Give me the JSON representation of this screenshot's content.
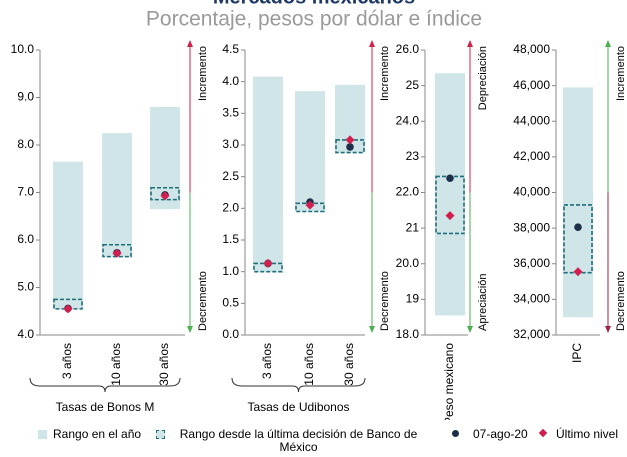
{
  "title": "Mercados mexicanos",
  "subtitle": "Porcentaje, pesos por dólar e índice",
  "legend": [
    {
      "name": "Rango en el año",
      "color": "#cfe5e8"
    },
    {
      "name": "Rango desde la última decisión de Banco de México",
      "color": "#1f6f7a"
    },
    {
      "name": "07-ago-20",
      "color": "#1c2e4a"
    },
    {
      "name": "Último nivel",
      "color": "#d21f4f"
    }
  ],
  "chart_data": [
    {
      "type": "range",
      "group_label": "Tasas de Bonos M",
      "categories": [
        "3 años",
        "10 años",
        "30 años"
      ],
      "range": {
        "low": [
          4.55,
          5.65,
          6.65
        ],
        "high": [
          7.65,
          8.25,
          8.8
        ]
      },
      "decision_range": {
        "low": [
          4.55,
          5.65,
          6.85
        ],
        "high": [
          4.75,
          5.9,
          7.1
        ]
      },
      "ago": [
        4.56,
        5.73,
        6.95
      ],
      "last": [
        4.55,
        5.72,
        6.93
      ],
      "ylim": [
        4,
        10
      ],
      "yticks": [
        {
          "value": 4,
          "label": "4.0"
        },
        {
          "value": 5,
          "label": "5.0"
        },
        {
          "value": 6,
          "label": "6.0"
        },
        {
          "value": 7,
          "label": "7.0"
        },
        {
          "value": 8,
          "label": "8.0"
        },
        {
          "value": 9,
          "label": "9.0"
        },
        {
          "value": 10,
          "label": "10.0"
        }
      ],
      "arrow_labels": {
        "top": "Incremento",
        "bottom": "Decremento"
      },
      "arrow_colors": [
        "#d0234a",
        "#4caf50"
      ]
    },
    {
      "type": "range",
      "group_label": "Tasas de Udibonos",
      "categories": [
        "3 años",
        "10 años",
        "30 años"
      ],
      "range": {
        "low": [
          1.05,
          1.95,
          2.88
        ],
        "high": [
          4.08,
          3.85,
          3.95
        ]
      },
      "decision_range": {
        "low": [
          1.0,
          1.95,
          2.88
        ],
        "high": [
          1.13,
          2.08,
          3.08
        ]
      },
      "ago": [
        1.13,
        2.1,
        2.97
      ],
      "last": [
        1.13,
        2.05,
        3.08
      ],
      "ylim": [
        0,
        4.5
      ],
      "yticks": [
        {
          "value": 0,
          "label": "0.0"
        },
        0.5,
        {
          "value": 1,
          "label": "1.0"
        },
        1.5,
        {
          "value": 2,
          "label": "2.0"
        },
        2.5,
        {
          "value": 3,
          "label": "3.0"
        },
        3.5,
        {
          "value": 4,
          "label": "4.0"
        },
        4.5
      ],
      "arrow_labels": {
        "top": "Incremento",
        "bottom": "Decremento"
      },
      "arrow_colors": [
        "#d0234a",
        "#4caf50"
      ]
    },
    {
      "type": "range",
      "categories": [
        "Peso mexicano"
      ],
      "range": {
        "low": [
          18.55
        ],
        "high": [
          25.35
        ]
      },
      "decision_range": {
        "low": [
          20.85
        ],
        "high": [
          22.45
        ]
      },
      "ago": [
        22.4
      ],
      "last": [
        21.35
      ],
      "ylim": [
        18,
        26
      ],
      "yticks": [
        {
          "value": 18,
          "label": "18.0"
        },
        19,
        {
          "value": 20,
          "label": "20.0"
        },
        21,
        {
          "value": 22,
          "label": "22.0"
        },
        23,
        {
          "value": 24,
          "label": "24.0"
        },
        25,
        {
          "value": 26,
          "label": "26.0"
        }
      ],
      "arrow_labels": {
        "top": "Depreciación",
        "bottom": "Apreciación"
      },
      "arrow_colors": [
        "#d0234a",
        "#4caf50"
      ]
    },
    {
      "type": "range",
      "categories": [
        "IPC"
      ],
      "range": {
        "low": [
          33000
        ],
        "high": [
          45900
        ]
      },
      "decision_range": {
        "low": [
          35500
        ],
        "high": [
          39300
        ]
      },
      "ago": [
        38050
      ],
      "last": [
        35550
      ],
      "ylim": [
        32000,
        48000
      ],
      "yticks": [
        {
          "value": 32000,
          "label": "32,000"
        },
        {
          "value": 34000,
          "label": "34,000"
        },
        {
          "value": 36000,
          "label": "36,000"
        },
        {
          "value": 38000,
          "label": "38,000"
        },
        {
          "value": 40000,
          "label": "40,000"
        },
        {
          "value": 42000,
          "label": "42,000"
        },
        {
          "value": 44000,
          "label": "44,000"
        },
        {
          "value": 46000,
          "label": "46,000"
        },
        {
          "value": 48000,
          "label": "48,000"
        }
      ],
      "arrow_labels": {
        "top": "Incremento",
        "bottom": "Decremento"
      },
      "arrow_colors": [
        "#4caf50",
        "#a0224a"
      ]
    }
  ]
}
